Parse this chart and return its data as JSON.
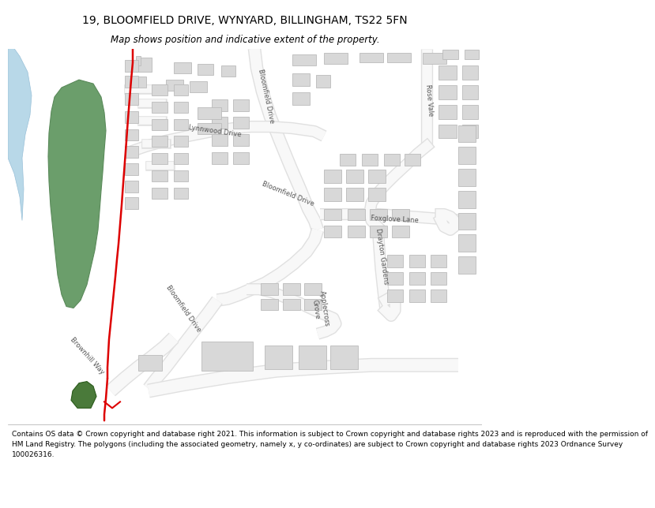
{
  "title_line1": "19, BLOOMFIELD DRIVE, WYNYARD, BILLINGHAM, TS22 5FN",
  "title_line2": "Map shows position and indicative extent of the property.",
  "footer_text_lines": [
    "Contains OS data © Crown copyright and database right 2021. This information is subject to Crown copyright and database rights 2023 and is reproduced with the permission of",
    "HM Land Registry. The polygons (including the associated geometry, namely x, y co-ordinates) are subject to Crown copyright and database rights 2023 Ordnance Survey",
    "100026316."
  ],
  "bg_color": "#ffffff",
  "building_fill": "#d8d8d8",
  "building_edge": "#bbbbbb",
  "green_fill": "#6b9e6b",
  "green_edge": "#5a8a5a",
  "blue_fill": "#b8d8e8",
  "blue_edge": "#98c0d8",
  "red_color": "#dd0000",
  "road_fill": "#ffffff",
  "road_edge": "#cccccc",
  "map_bg": "#ffffff",
  "label_color": "#555555",
  "title_fontsize": 10,
  "subtitle_fontsize": 8.5,
  "footer_fontsize": 6.5,
  "label_fontsize": 6.0
}
